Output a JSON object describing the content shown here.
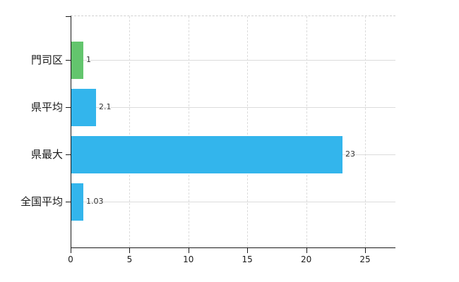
{
  "chart_data": {
    "type": "bar",
    "orientation": "horizontal",
    "title": "",
    "categories": [
      "門司区",
      "県平均",
      "県最大",
      "全国平均"
    ],
    "values": [
      1,
      2.1,
      23,
      1.03
    ],
    "value_labels": [
      "1",
      "2.1",
      "23",
      "1.03"
    ],
    "bar_colors": [
      "#63c56d",
      "#33b5ec",
      "#33b5ec",
      "#33b5ec"
    ],
    "x_ticks": [
      "0",
      "5",
      "10",
      "15",
      "20",
      "25"
    ],
    "x_tick_values": [
      0,
      5,
      10,
      15,
      20,
      25
    ],
    "xlim": [
      0,
      25
    ],
    "grid": true,
    "legend": false,
    "colors": {
      "bar_blue": "#33b5ec",
      "bar_green": "#63c56d",
      "axis": "#1a1a1a",
      "grid": "#dcdcdc",
      "value_label_text": "#333333",
      "axis_label_text": "#1a1a1a",
      "background": "#ffffff"
    }
  }
}
